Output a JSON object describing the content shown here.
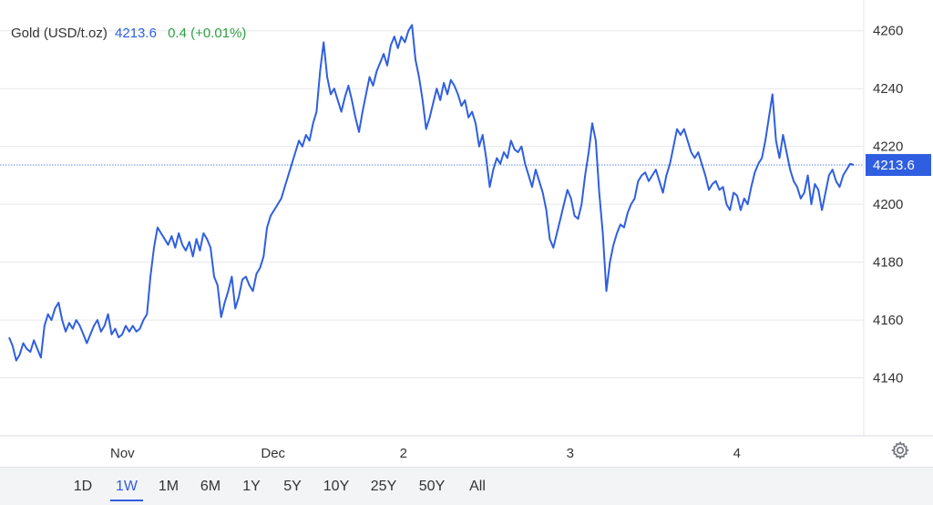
{
  "header": {
    "title": "Gold (USD/t.oz)",
    "price": "4213.6",
    "change": "0.4",
    "change_pct": "(+0.01%)"
  },
  "colors": {
    "line": "#2f5fe0",
    "price_label_bg": "#2f5fe0",
    "grid": "#e6e7ea",
    "change_up": "#2ea043"
  },
  "range_buttons": [
    "1D",
    "1W",
    "1M",
    "6M",
    "1Y",
    "5Y",
    "10Y",
    "25Y",
    "50Y",
    "All"
  ],
  "range_selected": "1W",
  "settings_icon": "gear-icon",
  "chart_data": {
    "type": "line",
    "grid": true,
    "y_axis_side": "right",
    "ylim": [
      4120,
      4270
    ],
    "yticks": [
      4140,
      4160,
      4180,
      4200,
      4220,
      4240,
      4260
    ],
    "xticks": [
      {
        "label": "Nov",
        "at": 13.6
      },
      {
        "label": "Dec",
        "at": 31.4
      },
      {
        "label": "2",
        "at": 46.8
      },
      {
        "label": "3",
        "at": 66.5
      },
      {
        "label": "4",
        "at": 86.2
      }
    ],
    "last_value": 4213.6,
    "last_value_label": "4213.6",
    "series": [
      {
        "values": [
          4154,
          4151,
          4146,
          4148,
          4152,
          4150,
          4149,
          4153,
          4150,
          4147,
          4158,
          4162,
          4160,
          4164,
          4166,
          4160,
          4156,
          4159,
          4157,
          4160,
          4158,
          4155,
          4152,
          4155,
          4158,
          4160,
          4156,
          4158,
          4162,
          4155,
          4157,
          4154,
          4155,
          4158,
          4156,
          4158,
          4156,
          4157,
          4160,
          4162,
          4175,
          4185,
          4192,
          4190,
          4188,
          4186,
          4189,
          4185,
          4190,
          4186,
          4184,
          4187,
          4182,
          4188,
          4184,
          4190,
          4188,
          4185,
          4175,
          4172,
          4161,
          4166,
          4170,
          4175,
          4164,
          4168,
          4174,
          4175,
          4172,
          4170,
          4176,
          4178,
          4182,
          4192,
          4196,
          4198,
          4200,
          4202,
          4206,
          4210,
          4214,
          4218,
          4222,
          4220,
          4224,
          4222,
          4228,
          4232,
          4246,
          4256,
          4244,
          4238,
          4240,
          4236,
          4232,
          4237,
          4241,
          4236,
          4230,
          4225,
          4232,
          4238,
          4244,
          4241,
          4246,
          4249,
          4252,
          4248,
          4255,
          4258,
          4254,
          4258,
          4256,
          4260,
          4262,
          4250,
          4244,
          4236,
          4226,
          4230,
          4235,
          4240,
          4236,
          4242,
          4238,
          4243,
          4241,
          4238,
          4234,
          4236,
          4230,
          4232,
          4228,
          4220,
          4224,
          4216,
          4206,
          4212,
          4216,
          4214,
          4218,
          4216,
          4222,
          4219,
          4218,
          4220,
          4214,
          4210,
          4206,
          4212,
          4208,
          4204,
          4198,
          4188,
          4185,
          4190,
          4195,
          4200,
          4205,
          4202,
          4196,
          4195,
          4200,
          4210,
          4218,
          4228,
          4222,
          4204,
          4190,
          4170,
          4180,
          4186,
          4190,
          4193,
          4192,
          4197,
          4200,
          4202,
          4208,
          4210,
          4211,
          4208,
          4210,
          4212,
          4208,
          4204,
          4210,
          4214,
          4220,
          4226,
          4224,
          4226,
          4222,
          4218,
          4216,
          4218,
          4214,
          4210,
          4205,
          4207,
          4208,
          4205,
          4206,
          4200,
          4198,
          4204,
          4203,
          4198,
          4202,
          4200,
          4206,
          4211,
          4214,
          4216,
          4222,
          4230,
          4238,
          4222,
          4216,
          4224,
          4218,
          4212,
          4208,
          4206,
          4202,
          4204,
          4210,
          4200,
          4207,
          4205,
          4198,
          4204,
          4210,
          4212,
          4208,
          4206,
          4210,
          4212,
          4214,
          4213.6
        ]
      }
    ]
  }
}
